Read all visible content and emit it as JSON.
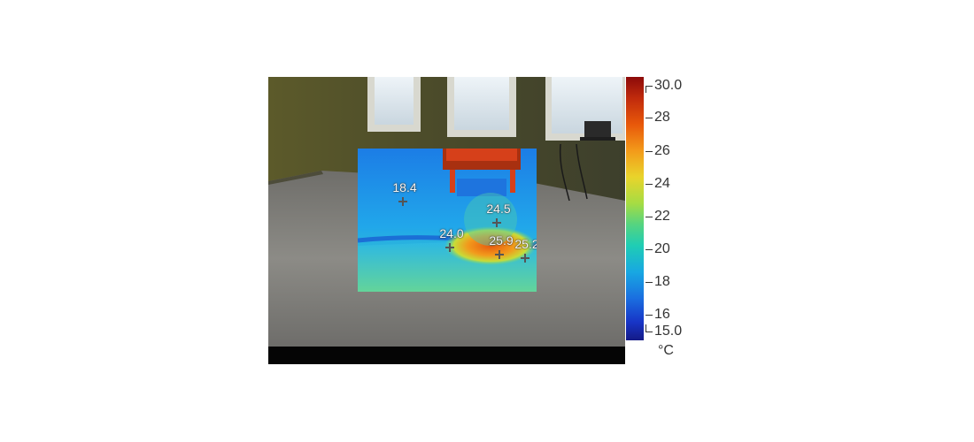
{
  "scale": {
    "max_label": "30.0",
    "min_label": "15.0",
    "tick_labels": [
      "28",
      "26",
      "24",
      "22",
      "20",
      "18",
      "16"
    ],
    "unit": "°C",
    "colors": [
      "#8c0a0a",
      "#e8580a",
      "#e9d42b",
      "#55d480",
      "#18a8e2",
      "#1835c7",
      "#141a86"
    ]
  },
  "spots": [
    {
      "label": "18.4"
    },
    {
      "label": "24.5"
    },
    {
      "label": "24.0"
    },
    {
      "label": "25.9"
    },
    {
      "label": "25.2"
    }
  ]
}
